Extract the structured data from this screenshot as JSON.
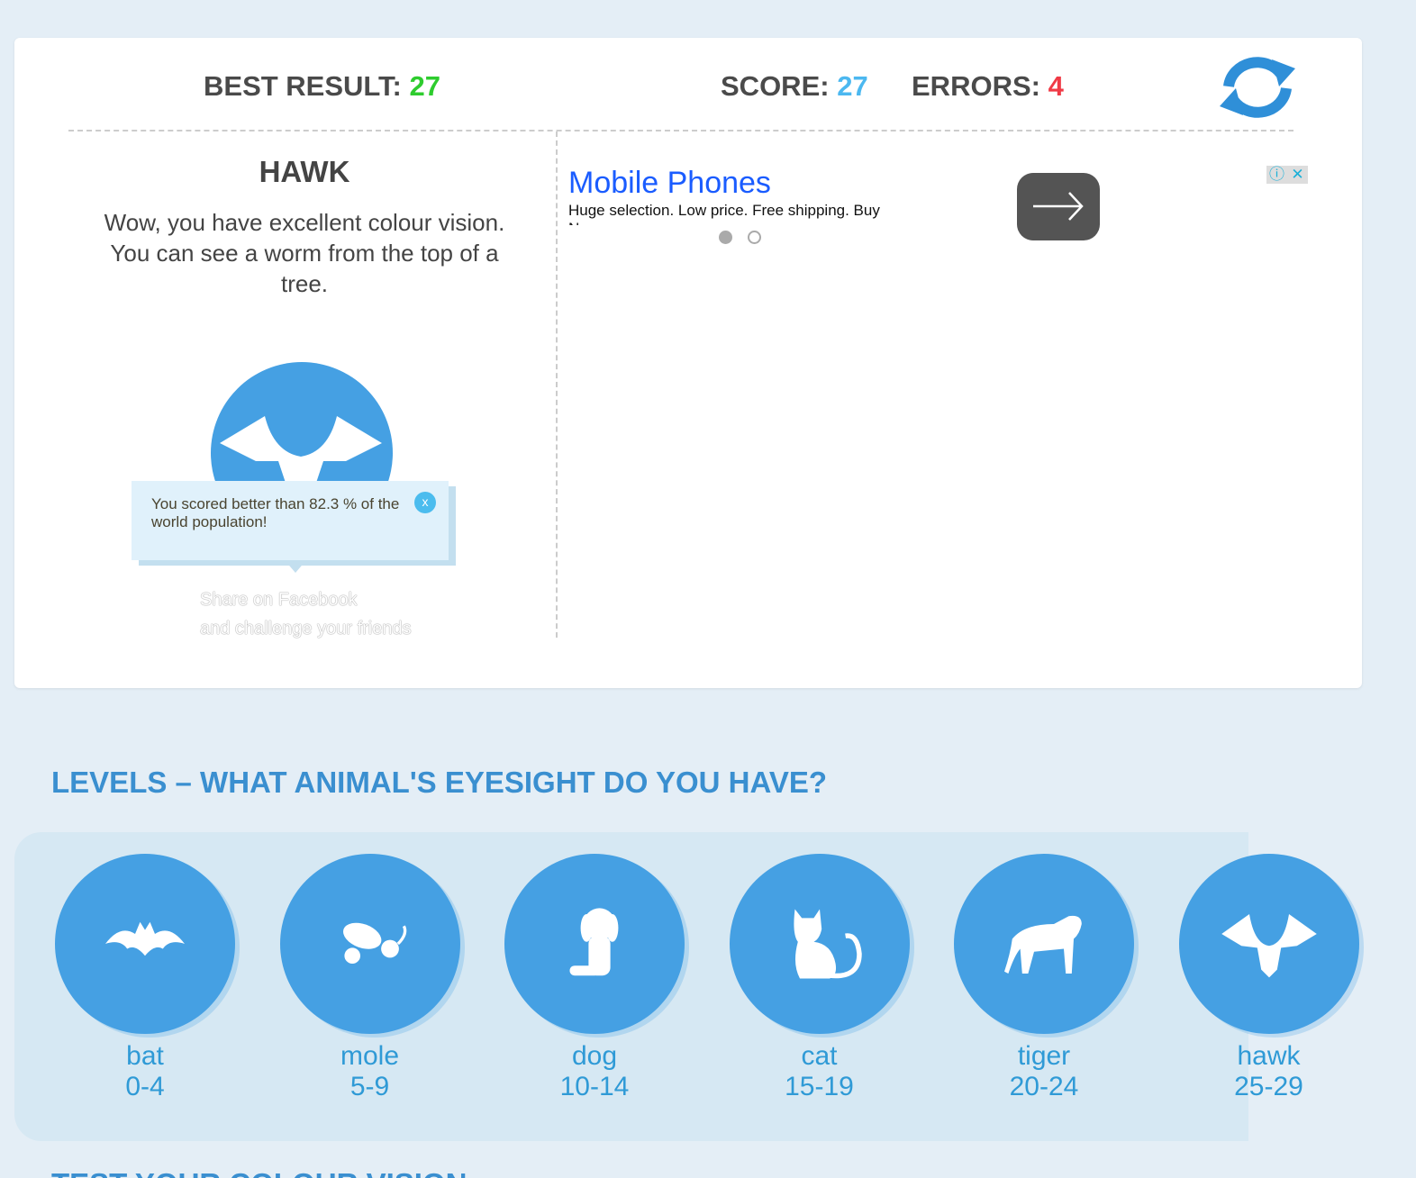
{
  "header": {
    "best_label": "BEST RESULT:",
    "best_value": "27",
    "score_label": "SCORE:",
    "score_value": "27",
    "errors_label": "ERRORS:",
    "errors_value": "4",
    "refresh_icon": "refresh-icon"
  },
  "colors": {
    "green": "#2ecc2e",
    "blue": "#4cb8f0",
    "red": "#f03a46",
    "circle": "#45a0e3",
    "heading": "#3a8fd0"
  },
  "result": {
    "title": "HAWK",
    "description": "Wow, you have excellent colour vision. You can see a worm from the top of a tree.",
    "tooltip": "You scored better than 82.3 % of the world population!",
    "tooltip_close": "x",
    "share_line1": "Share on Facebook",
    "share_line2": "and challenge your friends"
  },
  "ad": {
    "title": "Mobile Phones",
    "text": "Huge selection. Low price. Free shipping. Buy Now"
  },
  "levels": {
    "heading": "LEVELS – WHAT ANIMAL'S EYESIGHT DO YOU HAVE?",
    "items": [
      {
        "name": "bat",
        "range": "0-4"
      },
      {
        "name": "mole",
        "range": "5-9"
      },
      {
        "name": "dog",
        "range": "10-14"
      },
      {
        "name": "cat",
        "range": "15-19"
      },
      {
        "name": "tiger",
        "range": "20-24"
      },
      {
        "name": "hawk",
        "range": "25-29"
      }
    ]
  },
  "next_heading": "TEST YOUR COLOUR VISION"
}
